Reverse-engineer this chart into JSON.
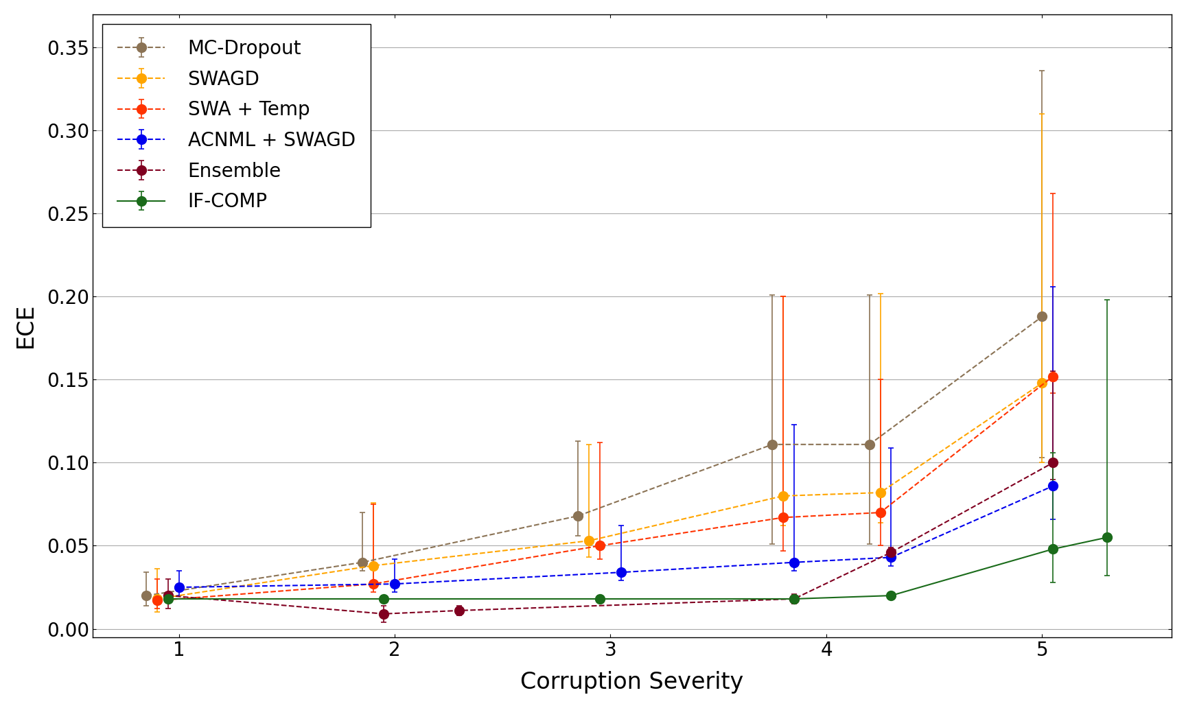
{
  "xlabel": "Corruption Severity",
  "ylabel": "ECE",
  "xlim": [
    0.6,
    5.6
  ],
  "ylim": [
    -0.005,
    0.37
  ],
  "yticks": [
    0.0,
    0.05,
    0.1,
    0.15,
    0.2,
    0.25,
    0.3,
    0.35
  ],
  "xticks": [
    1,
    2,
    3,
    4,
    5
  ],
  "background_color": "#FFFFFF",
  "grid_color": "#AAAAAA",
  "legend_fontsize": 20,
  "axis_label_fontsize": 24,
  "tick_fontsize": 20,
  "markersize": 10,
  "linewidth": 1.5,
  "capsize": 3,
  "series": [
    {
      "label": "MC-Dropout",
      "color": "#8B7355",
      "linestyle": "--",
      "x": [
        0.85,
        1.85,
        2.85,
        3.75,
        4.2,
        5.0
      ],
      "y": [
        0.02,
        0.04,
        0.068,
        0.111,
        0.111,
        0.188
      ],
      "yerr_lo": [
        0.006,
        0.005,
        0.012,
        0.06,
        0.06,
        0.085
      ],
      "yerr_hi": [
        0.014,
        0.03,
        0.045,
        0.09,
        0.09,
        0.148
      ]
    },
    {
      "label": "SWAGD",
      "color": "#FFA500",
      "linestyle": "--",
      "x": [
        0.9,
        1.9,
        2.9,
        3.8,
        4.25,
        5.0
      ],
      "y": [
        0.018,
        0.038,
        0.053,
        0.08,
        0.082,
        0.148
      ],
      "yerr_lo": [
        0.008,
        0.01,
        0.01,
        0.018,
        0.018,
        0.048
      ],
      "yerr_hi": [
        0.018,
        0.038,
        0.058,
        0.12,
        0.12,
        0.162
      ]
    },
    {
      "label": "SWA + Temp",
      "color": "#FF3300",
      "linestyle": "--",
      "x": [
        0.9,
        1.9,
        2.95,
        3.8,
        4.25,
        5.05
      ],
      "y": [
        0.017,
        0.027,
        0.05,
        0.067,
        0.07,
        0.152
      ],
      "yerr_lo": [
        0.005,
        0.005,
        0.008,
        0.02,
        0.02,
        0.01
      ],
      "yerr_hi": [
        0.013,
        0.048,
        0.062,
        0.133,
        0.08,
        0.11
      ]
    },
    {
      "label": "ACNML + SWAGD",
      "color": "#0000EE",
      "linestyle": "--",
      "x": [
        1.0,
        2.0,
        3.05,
        3.85,
        4.3,
        5.05
      ],
      "y": [
        0.025,
        0.027,
        0.034,
        0.04,
        0.043,
        0.086
      ],
      "yerr_lo": [
        0.005,
        0.005,
        0.005,
        0.005,
        0.005,
        0.02
      ],
      "yerr_hi": [
        0.01,
        0.015,
        0.028,
        0.083,
        0.066,
        0.12
      ]
    },
    {
      "label": "Ensemble",
      "color": "#800020",
      "linestyle": "--",
      "x": [
        0.95,
        1.95,
        2.3,
        3.85,
        4.3,
        5.05
      ],
      "y": [
        0.02,
        0.009,
        0.011,
        0.018,
        0.046,
        0.1
      ],
      "yerr_lo": [
        0.008,
        0.005,
        0.003,
        0.003,
        0.003,
        0.01
      ],
      "yerr_hi": [
        0.01,
        0.005,
        0.003,
        0.003,
        0.003,
        0.055
      ]
    },
    {
      "label": "IF-COMP",
      "color": "#1A6B1A",
      "linestyle": "-",
      "x": [
        0.95,
        1.95,
        2.95,
        3.85,
        4.3,
        5.05,
        5.3
      ],
      "y": [
        0.018,
        0.018,
        0.018,
        0.018,
        0.02,
        0.048,
        0.055
      ],
      "yerr_lo": [
        0.002,
        0.002,
        0.002,
        0.002,
        0.002,
        0.02,
        0.023
      ],
      "yerr_hi": [
        0.002,
        0.002,
        0.002,
        0.002,
        0.002,
        0.058,
        0.143
      ]
    }
  ]
}
